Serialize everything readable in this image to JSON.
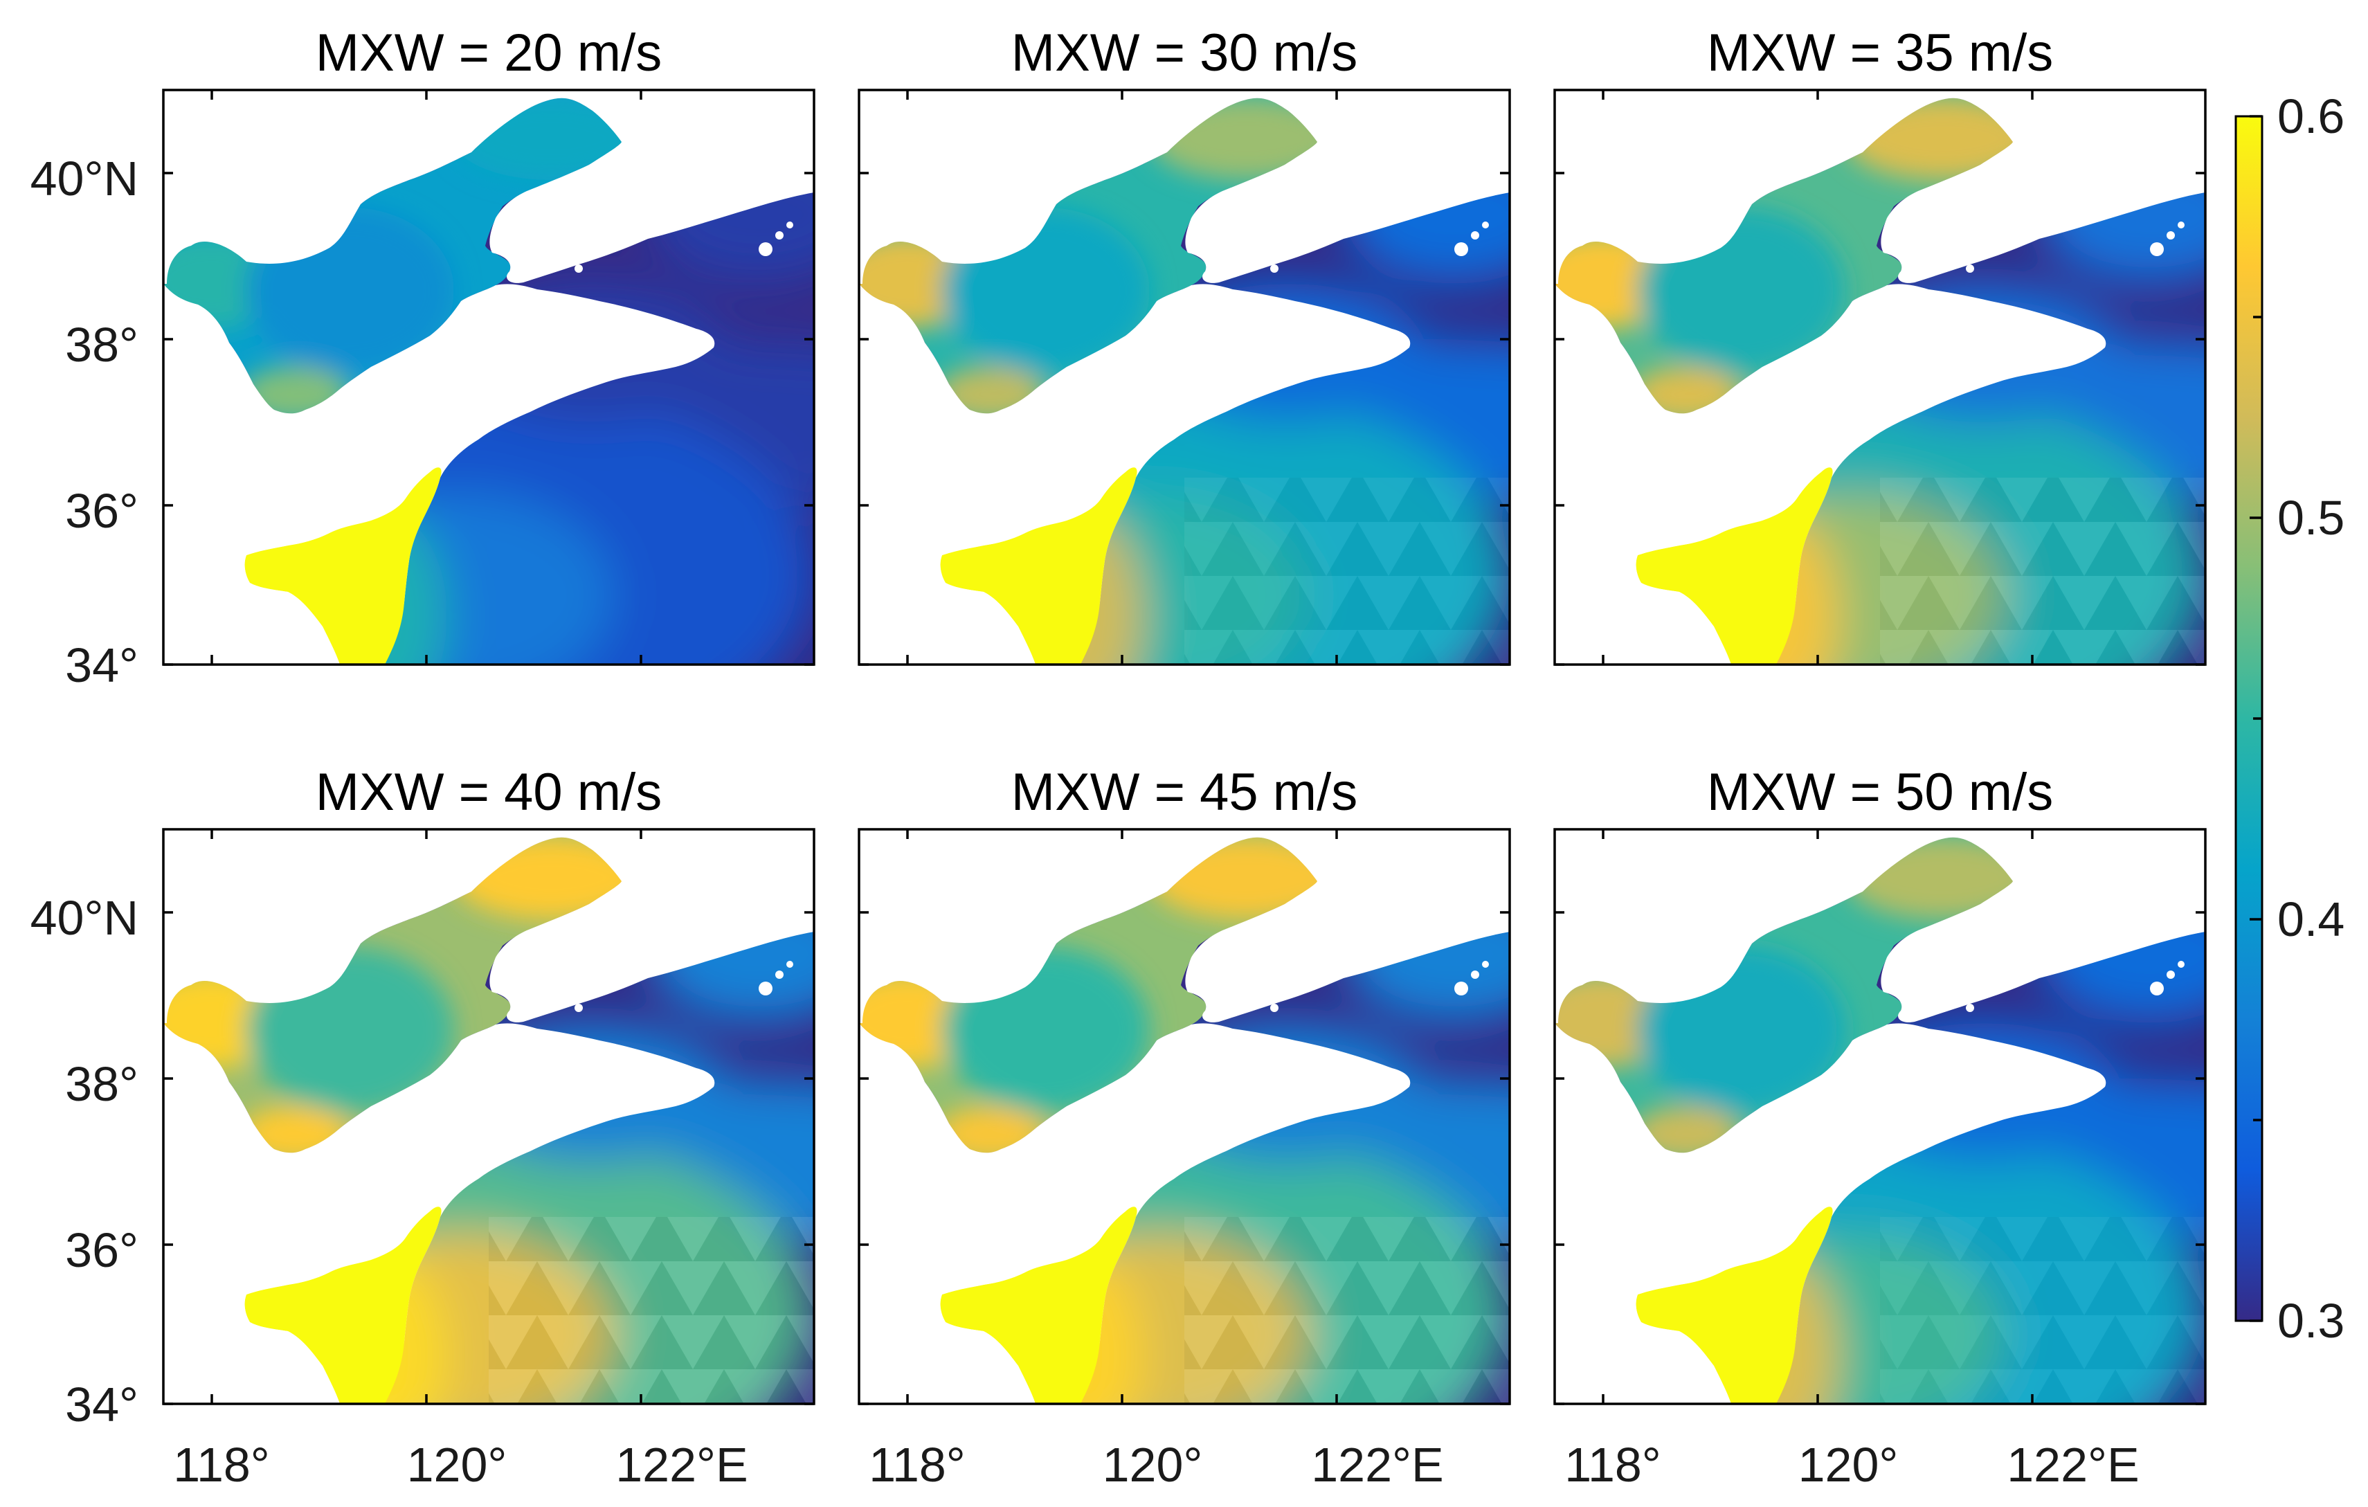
{
  "figure": {
    "panels": [
      {
        "title": "MXW = 20 m/s",
        "wind_speed_mps": 20
      },
      {
        "title": "MXW = 30 m/s",
        "wind_speed_mps": 30
      },
      {
        "title": "MXW = 35 m/s",
        "wind_speed_mps": 35
      },
      {
        "title": "MXW = 40 m/s",
        "wind_speed_mps": 40
      },
      {
        "title": "MXW = 45 m/s",
        "wind_speed_mps": 45
      },
      {
        "title": "MXW = 50 m/s",
        "wind_speed_mps": 50
      }
    ],
    "lat_ticks": [
      "40°N",
      "38°",
      "36°",
      "34°"
    ],
    "lon_ticks": [
      "118°",
      "120°",
      "122°E"
    ],
    "colorbar": {
      "ticks": [
        "0.6",
        "0.5",
        "0.4",
        "0.3"
      ],
      "min": 0.3,
      "max": 0.6,
      "colormap": [
        "#352a87",
        "#0f5cdd",
        "#1481d6",
        "#06a4ca",
        "#2eb7a4",
        "#87bf77",
        "#d1bb59",
        "#fec832",
        "#f9fb0e"
      ]
    },
    "colors": {
      "land": "#ffffff",
      "frame": "#000000"
    }
  }
}
